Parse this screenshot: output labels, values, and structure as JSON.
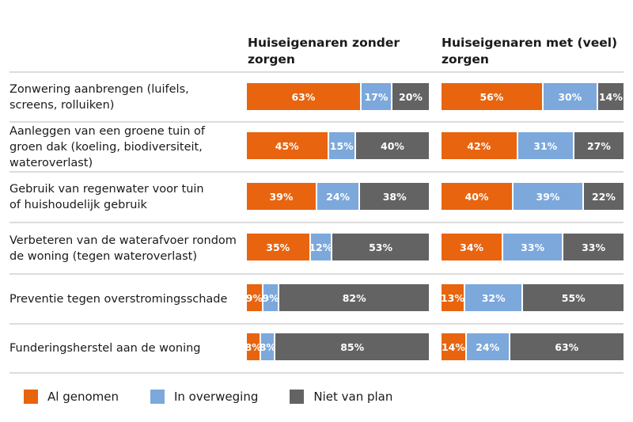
{
  "chart_data": {
    "type": "bar",
    "stacked": true,
    "orientation": "horizontal",
    "panels": [
      "Huiseigenaren zonder zorgen",
      "Huiseigenaren met (veel) zorgen"
    ],
    "categories": [
      "Zonwering aanbrengen (luifels, screens, rolluiken)",
      "Aanleggen van een groene tuin of groen dak (koeling, biodiversiteit, wateroverlast)",
      "Gebruik van regenwater voor tuin of huishoudelijk gebruik",
      "Verbeteren van de waterafvoer rondom de woning (tegen wateroverlast)",
      "Preventie tegen overstromingsschade",
      "Funderingsherstel aan de woning"
    ],
    "series_names": [
      "Al genomen",
      "In overweging",
      "Niet van plan"
    ],
    "colors": [
      "#E8640F",
      "#7CA8DC",
      "#636363"
    ],
    "values": [
      [
        [
          63,
          17,
          20
        ],
        [
          56,
          30,
          14
        ]
      ],
      [
        [
          45,
          15,
          40
        ],
        [
          42,
          31,
          27
        ]
      ],
      [
        [
          39,
          24,
          38
        ],
        [
          40,
          39,
          22
        ]
      ],
      [
        [
          35,
          12,
          53
        ],
        [
          34,
          33,
          33
        ]
      ],
      [
        [
          9,
          9,
          82
        ],
        [
          13,
          32,
          55
        ]
      ],
      [
        [
          8,
          8,
          85
        ],
        [
          14,
          24,
          63
        ]
      ]
    ],
    "unit": "%",
    "legend_position": "bottom-left"
  }
}
